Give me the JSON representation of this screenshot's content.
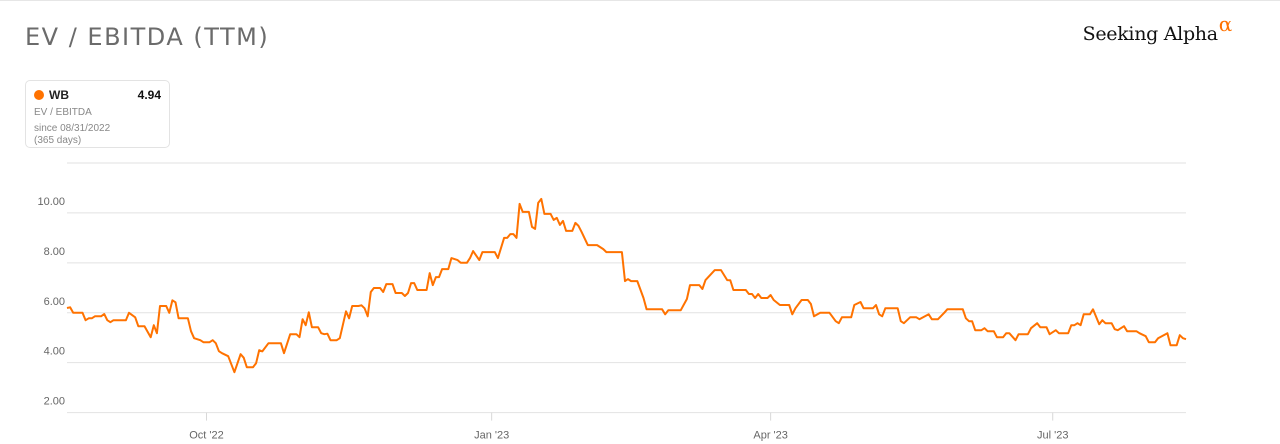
{
  "header": {
    "title": "EV / EBITDA (TTM)",
    "logo_text": "Seeking Alpha",
    "logo_mark": "α"
  },
  "legend": {
    "symbol": "WB",
    "value": "4.94",
    "metric": "EV / EBITDA",
    "since": "since 08/31/2022",
    "period": "(365 days)",
    "color": "#ff7200"
  },
  "chart_data": {
    "type": "line",
    "title": "EV / EBITDA (TTM)",
    "xlim": [
      "2022-08-17",
      "2023-08-13"
    ],
    "ylim": [
      2,
      12
    ],
    "grid": true,
    "legend_placement": "top-left",
    "y_ticks": [
      {
        "v": 2,
        "label": "2.00"
      },
      {
        "v": 4,
        "label": "4.00"
      },
      {
        "v": 6,
        "label": "6.00"
      },
      {
        "v": 8,
        "label": "8.00"
      },
      {
        "v": 10,
        "label": "10.00"
      },
      {
        "v": 12,
        "label": ""
      }
    ],
    "x_ticks": [
      {
        "date": "2022-10-01",
        "label": "Oct '22"
      },
      {
        "date": "2023-01-01",
        "label": "Jan '23"
      },
      {
        "date": "2023-04-01",
        "label": "Apr '23"
      },
      {
        "date": "2023-07-01",
        "label": "Jul '23"
      }
    ],
    "series": [
      {
        "name": "WB",
        "color": "#ff7200",
        "points": [
          [
            "2022-08-17",
            6.19
          ],
          [
            "2022-08-18",
            6.22
          ],
          [
            "2022-08-19",
            6.0
          ],
          [
            "2022-08-22",
            6.0
          ],
          [
            "2022-08-23",
            5.7
          ],
          [
            "2022-08-24",
            5.78
          ],
          [
            "2022-08-25",
            5.78
          ],
          [
            "2022-08-26",
            5.86
          ],
          [
            "2022-08-28",
            5.86
          ],
          [
            "2022-08-29",
            5.95
          ],
          [
            "2022-08-30",
            5.7
          ],
          [
            "2022-08-31",
            5.62
          ],
          [
            "2022-09-01",
            5.7
          ],
          [
            "2022-09-05",
            5.7
          ],
          [
            "2022-09-06",
            6.0
          ],
          [
            "2022-09-08",
            5.82
          ],
          [
            "2022-09-09",
            5.46
          ],
          [
            "2022-09-11",
            5.46
          ],
          [
            "2022-09-13",
            5.02
          ],
          [
            "2022-09-14",
            5.5
          ],
          [
            "2022-09-15",
            5.18
          ],
          [
            "2022-09-16",
            6.27
          ],
          [
            "2022-09-18",
            6.27
          ],
          [
            "2022-09-19",
            6.0
          ],
          [
            "2022-09-20",
            6.5
          ],
          [
            "2022-09-21",
            6.42
          ],
          [
            "2022-09-22",
            5.78
          ],
          [
            "2022-09-25",
            5.78
          ],
          [
            "2022-09-26",
            5.26
          ],
          [
            "2022-09-27",
            4.98
          ],
          [
            "2022-09-29",
            4.9
          ],
          [
            "2022-09-30",
            4.82
          ],
          [
            "2022-10-02",
            4.82
          ],
          [
            "2022-10-03",
            4.9
          ],
          [
            "2022-10-04",
            4.78
          ],
          [
            "2022-10-05",
            4.46
          ],
          [
            "2022-10-06",
            4.38
          ],
          [
            "2022-10-08",
            4.26
          ],
          [
            "2022-10-10",
            3.62
          ],
          [
            "2022-10-12",
            4.34
          ],
          [
            "2022-10-13",
            4.2
          ],
          [
            "2022-10-14",
            3.82
          ],
          [
            "2022-10-16",
            3.82
          ],
          [
            "2022-10-17",
            3.98
          ],
          [
            "2022-10-18",
            4.5
          ],
          [
            "2022-10-19",
            4.45
          ],
          [
            "2022-10-21",
            4.78
          ],
          [
            "2022-10-25",
            4.78
          ],
          [
            "2022-10-26",
            4.38
          ],
          [
            "2022-10-28",
            5.14
          ],
          [
            "2022-10-30",
            5.14
          ],
          [
            "2022-10-31",
            5.02
          ],
          [
            "2022-11-01",
            5.74
          ],
          [
            "2022-11-02",
            5.5
          ],
          [
            "2022-11-03",
            6.02
          ],
          [
            "2022-11-04",
            5.42
          ],
          [
            "2022-11-06",
            5.42
          ],
          [
            "2022-11-07",
            5.18
          ],
          [
            "2022-11-08",
            5.14
          ],
          [
            "2022-11-09",
            5.16
          ],
          [
            "2022-11-10",
            4.9
          ],
          [
            "2022-11-12",
            4.9
          ],
          [
            "2022-11-13",
            4.98
          ],
          [
            "2022-11-15",
            6.06
          ],
          [
            "2022-11-16",
            5.78
          ],
          [
            "2022-11-17",
            6.27
          ],
          [
            "2022-11-19",
            6.27
          ],
          [
            "2022-11-20",
            6.3
          ],
          [
            "2022-11-21",
            6.18
          ],
          [
            "2022-11-22",
            5.86
          ],
          [
            "2022-11-23",
            6.83
          ],
          [
            "2022-11-24",
            6.99
          ],
          [
            "2022-11-26",
            6.99
          ],
          [
            "2022-11-27",
            6.83
          ],
          [
            "2022-11-28",
            7.15
          ],
          [
            "2022-11-30",
            7.15
          ],
          [
            "2022-12-01",
            6.79
          ],
          [
            "2022-12-03",
            6.79
          ],
          [
            "2022-12-04",
            6.67
          ],
          [
            "2022-12-05",
            6.79
          ],
          [
            "2022-12-06",
            7.19
          ],
          [
            "2022-12-07",
            7.19
          ],
          [
            "2022-12-08",
            6.91
          ],
          [
            "2022-12-11",
            6.91
          ],
          [
            "2022-12-12",
            7.59
          ],
          [
            "2022-12-13",
            7.11
          ],
          [
            "2022-12-14",
            7.43
          ],
          [
            "2022-12-15",
            7.43
          ],
          [
            "2022-12-16",
            7.75
          ],
          [
            "2022-12-18",
            7.75
          ],
          [
            "2022-12-19",
            8.19
          ],
          [
            "2022-12-21",
            8.11
          ],
          [
            "2022-12-22",
            8.0
          ],
          [
            "2022-12-24",
            8.0
          ],
          [
            "2022-12-25",
            8.19
          ],
          [
            "2022-12-26",
            8.47
          ],
          [
            "2022-12-28",
            8.11
          ],
          [
            "2022-12-29",
            8.43
          ],
          [
            "2023-01-02",
            8.43
          ],
          [
            "2023-01-03",
            8.19
          ],
          [
            "2023-01-05",
            9.0
          ],
          [
            "2023-01-06",
            9.0
          ],
          [
            "2023-01-07",
            9.15
          ],
          [
            "2023-01-08",
            9.15
          ],
          [
            "2023-01-09",
            9.0
          ],
          [
            "2023-01-10",
            10.36
          ],
          [
            "2023-01-11",
            10.04
          ],
          [
            "2023-01-13",
            10.04
          ],
          [
            "2023-01-14",
            9.44
          ],
          [
            "2023-01-15",
            9.36
          ],
          [
            "2023-01-16",
            10.4
          ],
          [
            "2023-01-17",
            10.56
          ],
          [
            "2023-01-18",
            9.96
          ],
          [
            "2023-01-20",
            9.96
          ],
          [
            "2023-01-21",
            9.72
          ],
          [
            "2023-01-22",
            9.8
          ],
          [
            "2023-01-23",
            9.52
          ],
          [
            "2023-01-24",
            9.68
          ],
          [
            "2023-01-25",
            9.28
          ],
          [
            "2023-01-27",
            9.28
          ],
          [
            "2023-01-28",
            9.6
          ],
          [
            "2023-01-29",
            9.48
          ],
          [
            "2023-01-30",
            9.24
          ],
          [
            "2023-02-01",
            8.71
          ],
          [
            "2023-02-04",
            8.71
          ],
          [
            "2023-02-06",
            8.55
          ],
          [
            "2023-02-07",
            8.43
          ],
          [
            "2023-02-10",
            8.43
          ],
          [
            "2023-02-12",
            8.43
          ],
          [
            "2023-02-13",
            7.27
          ],
          [
            "2023-02-14",
            7.35
          ],
          [
            "2023-02-15",
            7.27
          ],
          [
            "2023-02-17",
            7.27
          ],
          [
            "2023-02-19",
            6.59
          ],
          [
            "2023-02-20",
            6.14
          ],
          [
            "2023-02-25",
            6.14
          ],
          [
            "2023-02-26",
            5.94
          ],
          [
            "2023-02-27",
            6.1
          ],
          [
            "2023-03-03",
            6.1
          ],
          [
            "2023-03-05",
            6.55
          ],
          [
            "2023-03-06",
            7.11
          ],
          [
            "2023-03-09",
            7.11
          ],
          [
            "2023-03-10",
            6.95
          ],
          [
            "2023-03-11",
            7.31
          ],
          [
            "2023-03-14",
            7.71
          ],
          [
            "2023-03-16",
            7.71
          ],
          [
            "2023-03-18",
            7.31
          ],
          [
            "2023-03-19",
            7.3
          ],
          [
            "2023-03-20",
            6.91
          ],
          [
            "2023-03-24",
            6.91
          ],
          [
            "2023-03-25",
            6.75
          ],
          [
            "2023-03-26",
            6.75
          ],
          [
            "2023-03-27",
            6.59
          ],
          [
            "2023-03-28",
            6.75
          ],
          [
            "2023-03-29",
            6.59
          ],
          [
            "2023-03-31",
            6.59
          ],
          [
            "2023-04-01",
            6.71
          ],
          [
            "2023-04-02",
            6.51
          ],
          [
            "2023-04-04",
            6.31
          ],
          [
            "2023-04-07",
            6.31
          ],
          [
            "2023-04-08",
            5.94
          ],
          [
            "2023-04-09",
            6.18
          ],
          [
            "2023-04-11",
            6.51
          ],
          [
            "2023-04-13",
            6.51
          ],
          [
            "2023-04-14",
            6.35
          ],
          [
            "2023-04-15",
            5.86
          ],
          [
            "2023-04-17",
            6.0
          ],
          [
            "2023-04-20",
            6.0
          ],
          [
            "2023-04-22",
            5.66
          ],
          [
            "2023-04-23",
            5.58
          ],
          [
            "2023-04-24",
            5.82
          ],
          [
            "2023-04-27",
            5.82
          ],
          [
            "2023-04-28",
            6.31
          ],
          [
            "2023-04-30",
            6.43
          ],
          [
            "2023-05-01",
            6.18
          ],
          [
            "2023-05-04",
            6.18
          ],
          [
            "2023-05-05",
            6.31
          ],
          [
            "2023-05-06",
            5.94
          ],
          [
            "2023-05-07",
            5.86
          ],
          [
            "2023-05-08",
            6.18
          ],
          [
            "2023-05-12",
            6.18
          ],
          [
            "2023-05-13",
            5.66
          ],
          [
            "2023-05-14",
            5.58
          ],
          [
            "2023-05-16",
            5.82
          ],
          [
            "2023-05-18",
            5.82
          ],
          [
            "2023-05-19",
            5.74
          ],
          [
            "2023-05-22",
            5.94
          ],
          [
            "2023-05-23",
            5.74
          ],
          [
            "2023-05-25",
            5.74
          ],
          [
            "2023-05-27",
            6.0
          ],
          [
            "2023-05-28",
            6.14
          ],
          [
            "2023-06-02",
            6.14
          ],
          [
            "2023-06-03",
            5.78
          ],
          [
            "2023-06-04",
            5.66
          ],
          [
            "2023-06-05",
            5.66
          ],
          [
            "2023-06-06",
            5.3
          ],
          [
            "2023-06-08",
            5.3
          ],
          [
            "2023-06-09",
            5.38
          ],
          [
            "2023-06-10",
            5.26
          ],
          [
            "2023-06-12",
            5.26
          ],
          [
            "2023-06-13",
            5.02
          ],
          [
            "2023-06-15",
            5.02
          ],
          [
            "2023-06-16",
            5.18
          ],
          [
            "2023-06-17",
            5.18
          ],
          [
            "2023-06-19",
            4.9
          ],
          [
            "2023-06-20",
            5.14
          ],
          [
            "2023-06-23",
            5.14
          ],
          [
            "2023-06-24",
            5.38
          ],
          [
            "2023-06-26",
            5.58
          ],
          [
            "2023-06-27",
            5.42
          ],
          [
            "2023-06-29",
            5.42
          ],
          [
            "2023-06-30",
            5.14
          ],
          [
            "2023-07-02",
            5.3
          ],
          [
            "2023-07-03",
            5.18
          ],
          [
            "2023-07-06",
            5.18
          ],
          [
            "2023-07-07",
            5.5
          ],
          [
            "2023-07-08",
            5.5
          ],
          [
            "2023-07-09",
            5.58
          ],
          [
            "2023-07-10",
            5.5
          ],
          [
            "2023-07-11",
            5.94
          ],
          [
            "2023-07-13",
            5.94
          ],
          [
            "2023-07-14",
            6.14
          ],
          [
            "2023-07-16",
            5.54
          ],
          [
            "2023-07-17",
            5.7
          ],
          [
            "2023-07-18",
            5.58
          ],
          [
            "2023-07-20",
            5.58
          ],
          [
            "2023-07-21",
            5.34
          ],
          [
            "2023-07-22",
            5.3
          ],
          [
            "2023-07-24",
            5.46
          ],
          [
            "2023-07-25",
            5.26
          ],
          [
            "2023-07-28",
            5.26
          ],
          [
            "2023-07-29",
            5.18
          ],
          [
            "2023-07-31",
            5.06
          ],
          [
            "2023-08-01",
            4.82
          ],
          [
            "2023-08-03",
            4.82
          ],
          [
            "2023-08-04",
            4.98
          ],
          [
            "2023-08-07",
            5.18
          ],
          [
            "2023-08-08",
            4.7
          ],
          [
            "2023-08-10",
            4.7
          ],
          [
            "2023-08-11",
            5.1
          ],
          [
            "2023-08-12",
            4.98
          ],
          [
            "2023-08-13",
            4.94
          ]
        ]
      }
    ]
  }
}
